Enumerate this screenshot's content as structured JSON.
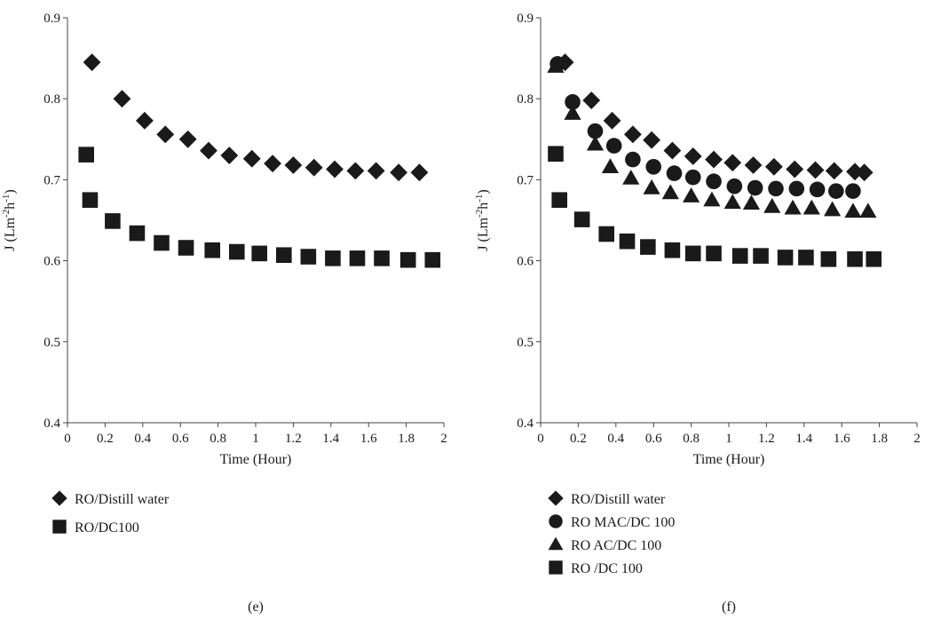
{
  "chart_data": [
    {
      "type": "scatter",
      "panel_label": "(e)",
      "xlabel": "Time (Hour)",
      "ylabel": "J (Lm",
      "ylabel_sup1": "-2",
      "ylabel_mid": "h",
      "ylabel_sup2": "-1",
      "ylabel_end": ")",
      "xlim": [
        0,
        2
      ],
      "ylim": [
        0.4,
        0.9
      ],
      "xticks": [
        "0",
        "0.2",
        "0.4",
        "0.6",
        "0.8",
        "1",
        "1.2",
        "1.4",
        "1.6",
        "1.8",
        "2"
      ],
      "yticks": [
        "0.4",
        "0.5",
        "0.6",
        "0.7",
        "0.8",
        "0.9"
      ],
      "grid": false,
      "legend_position": "bottom-left",
      "series": [
        {
          "name": "RO/Distill water",
          "marker": "diamond",
          "x": [
            0.13,
            0.29,
            0.41,
            0.52,
            0.64,
            0.75,
            0.86,
            0.98,
            1.09,
            1.2,
            1.31,
            1.42,
            1.53,
            1.64,
            1.76,
            1.87
          ],
          "y": [
            0.845,
            0.8,
            0.773,
            0.756,
            0.75,
            0.736,
            0.73,
            0.726,
            0.72,
            0.718,
            0.715,
            0.713,
            0.711,
            0.711,
            0.709,
            0.709
          ]
        },
        {
          "name": "RO/DC100",
          "marker": "square",
          "x": [
            0.1,
            0.12,
            0.24,
            0.37,
            0.5,
            0.63,
            0.77,
            0.9,
            1.02,
            1.15,
            1.28,
            1.41,
            1.54,
            1.67,
            1.81,
            1.94
          ],
          "y": [
            0.731,
            0.675,
            0.649,
            0.634,
            0.622,
            0.616,
            0.613,
            0.611,
            0.609,
            0.607,
            0.605,
            0.603,
            0.603,
            0.603,
            0.601,
            0.601
          ]
        }
      ]
    },
    {
      "type": "scatter",
      "panel_label": "(f)",
      "xlabel": "Time (Hour)",
      "ylabel": "J (Lm",
      "ylabel_sup1": "-2",
      "ylabel_mid": "h",
      "ylabel_sup2": "-1",
      "ylabel_end": ")",
      "xlim": [
        0,
        2
      ],
      "ylim": [
        0.4,
        0.9
      ],
      "xticks": [
        "0",
        "0.2",
        "0.4",
        "0.6",
        "0.8",
        "1",
        "1.2",
        "1.4",
        "1.6",
        "1.8",
        "2"
      ],
      "yticks": [
        "0.4",
        "0.5",
        "0.6",
        "0.7",
        "0.8",
        "0.9"
      ],
      "grid": false,
      "legend_position": "bottom-left",
      "series": [
        {
          "name": "RO/Distill water",
          "marker": "diamond",
          "x": [
            0.13,
            0.27,
            0.38,
            0.49,
            0.59,
            0.7,
            0.81,
            0.92,
            1.02,
            1.13,
            1.24,
            1.35,
            1.46,
            1.56,
            1.67,
            1.72
          ],
          "y": [
            0.845,
            0.798,
            0.773,
            0.756,
            0.749,
            0.736,
            0.729,
            0.725,
            0.721,
            0.718,
            0.716,
            0.713,
            0.712,
            0.711,
            0.71,
            0.709
          ]
        },
        {
          "name": "RO MAC/DC 100",
          "marker": "circle",
          "x": [
            0.09,
            0.17,
            0.29,
            0.39,
            0.49,
            0.6,
            0.71,
            0.81,
            0.92,
            1.03,
            1.14,
            1.25,
            1.36,
            1.47,
            1.57,
            1.66
          ],
          "y": [
            0.843,
            0.796,
            0.76,
            0.742,
            0.725,
            0.716,
            0.708,
            0.703,
            0.698,
            0.692,
            0.69,
            0.689,
            0.689,
            0.688,
            0.686,
            0.686
          ]
        },
        {
          "name": "RO AC/DC 100",
          "marker": "triangle",
          "x": [
            0.08,
            0.17,
            0.29,
            0.37,
            0.48,
            0.59,
            0.69,
            0.8,
            0.91,
            1.02,
            1.12,
            1.23,
            1.34,
            1.44,
            1.55,
            1.66,
            1.74
          ],
          "y": [
            0.84,
            0.782,
            0.744,
            0.716,
            0.702,
            0.69,
            0.684,
            0.68,
            0.675,
            0.672,
            0.671,
            0.667,
            0.665,
            0.665,
            0.663,
            0.661,
            0.661
          ]
        },
        {
          "name": "RO /DC 100",
          "marker": "square",
          "x": [
            0.08,
            0.1,
            0.22,
            0.35,
            0.46,
            0.57,
            0.7,
            0.81,
            0.92,
            1.06,
            1.17,
            1.3,
            1.41,
            1.53,
            1.67,
            1.77
          ],
          "y": [
            0.732,
            0.675,
            0.651,
            0.633,
            0.624,
            0.617,
            0.613,
            0.609,
            0.609,
            0.606,
            0.606,
            0.604,
            0.604,
            0.602,
            0.602,
            0.602
          ]
        }
      ]
    }
  ]
}
